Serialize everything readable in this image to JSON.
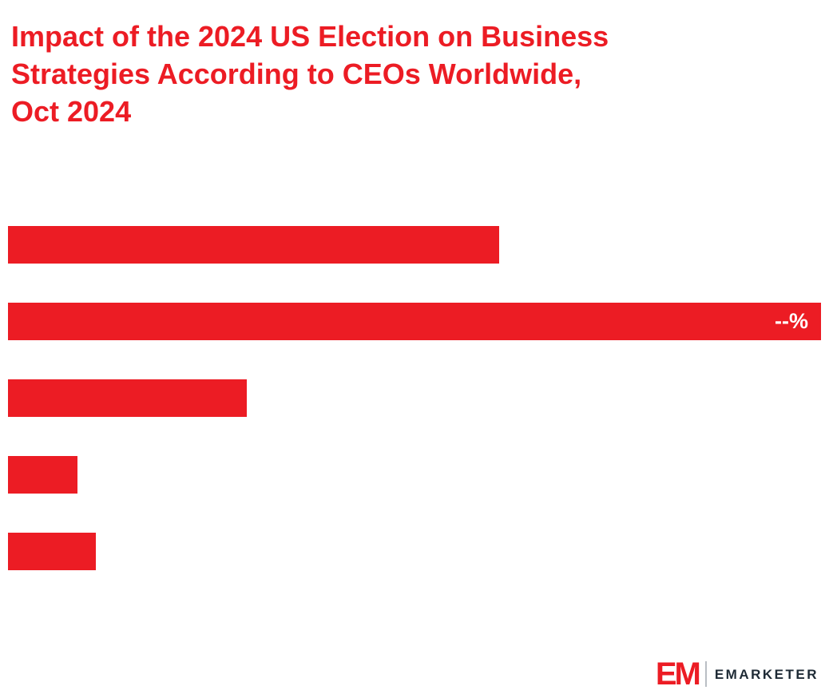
{
  "title": {
    "text": "Impact of the 2024 US Election on Business\nStrategies According to CEOs Worldwide,\nOct 2024"
  },
  "colors": {
    "accent": "#EC1C24",
    "bar": "#EC1C24",
    "value_label": "#FFFFFF",
    "logo_text": "#1E2A35"
  },
  "chart_data": {
    "type": "bar",
    "orientation": "horizontal",
    "title": "Impact of the 2024 US Election on Business Strategies According to CEOs Worldwide, Oct 2024",
    "bar_color": "#EC1C24",
    "bars": [
      {
        "width_pct": 60.4,
        "label": ""
      },
      {
        "width_pct": 100,
        "label": "--%"
      },
      {
        "width_pct": 29.4,
        "label": ""
      },
      {
        "width_pct": 8.5,
        "label": ""
      },
      {
        "width_pct": 10.8,
        "label": ""
      }
    ]
  },
  "logo": {
    "mark": "EM",
    "wordmark": "EMARKETER"
  }
}
